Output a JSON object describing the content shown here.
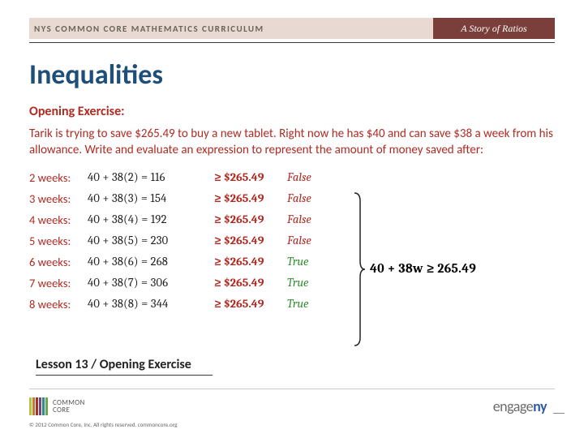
{
  "header": {
    "left": "NYS COMMON CORE MATHEMATICS CURRICULUM",
    "right": "A Story of Ratios"
  },
  "title": "Inequalities",
  "exercise": {
    "heading": "Opening Exercise:",
    "prompt": "Tarik is trying to save $265.49 to buy a new tablet.  Right now he has $40 and can save $38 a week from his allowance.  Write and evaluate an expression to represent the amount of money saved after:",
    "target": "$265.49",
    "rows": [
      {
        "label": "2 weeks:",
        "expr": "40 + 38(2) = 116",
        "tf": "False",
        "ok": false
      },
      {
        "label": "3 weeks:",
        "expr": "40 + 38(3) = 154",
        "tf": "False",
        "ok": false
      },
      {
        "label": "4 weeks:",
        "expr": "40 + 38(4) = 192",
        "tf": "False",
        "ok": false
      },
      {
        "label": "5 weeks:",
        "expr": "40 + 38(5) = 230",
        "tf": "False",
        "ok": false
      },
      {
        "label": "6 weeks:",
        "expr": "40 + 38(6) = 268",
        "tf": "True",
        "ok": true
      },
      {
        "label": "7 weeks:",
        "expr": "40 + 38(7) = 306",
        "tf": "True",
        "ok": true
      },
      {
        "label": "8 weeks:",
        "expr": "40 + 38(8) = 344",
        "tf": "True",
        "ok": true
      }
    ]
  },
  "summary_ineq": "40 + 38w ≥ 265.49",
  "lesson": "Lesson 13 / Opening Exercise",
  "footer": {
    "cc1": "COMMON",
    "cc2": "CORE",
    "copyright": "© 2012 Common Core, Inc. All rights reserved.  commoncore.org",
    "engage_pre": "engage",
    "engage_ny": "ny",
    "bar_colors": [
      "#b9c23a",
      "#c27a3a",
      "#b02b23",
      "#6b4a8a",
      "#2f8a8a",
      "#6aa84f"
    ]
  },
  "colors": {
    "header_bg": "#e8d9d2",
    "header_right_bg": "#7a3f3a",
    "accent_red": "#b02b23",
    "true_green": "#2e8b2e",
    "title_blue": "#1f4e79"
  }
}
